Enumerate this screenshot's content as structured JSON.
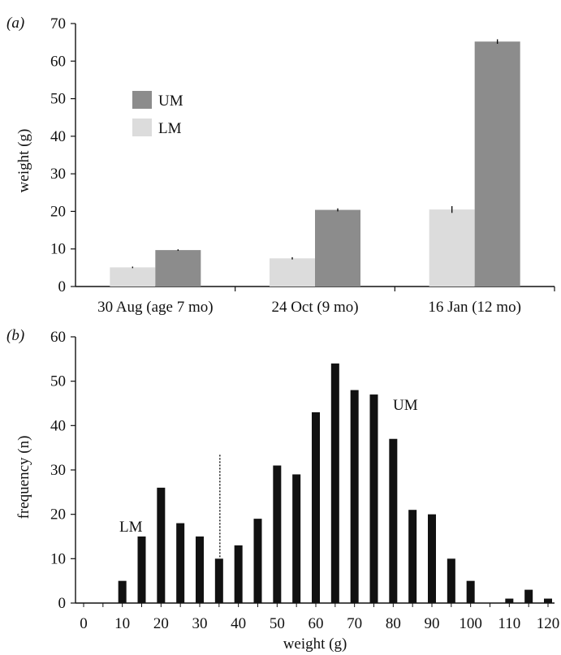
{
  "chart_data": [
    {
      "panel_label": "(a)",
      "type": "bar",
      "ylabel": "weight (g)",
      "ylim": [
        0,
        70
      ],
      "yticks": [
        0,
        10,
        20,
        30,
        40,
        50,
        60,
        70
      ],
      "categories": [
        "30 Aug (age 7 mo)",
        "24 Oct (9 mo)",
        "16 Jan (12 mo)"
      ],
      "series": [
        {
          "name": "LM",
          "color": "#dcdcdc",
          "values": [
            5.1,
            7.5,
            20.5
          ],
          "errors": [
            0.2,
            0.3,
            0.9
          ]
        },
        {
          "name": "UM",
          "color": "#8c8c8c",
          "values": [
            9.7,
            20.4,
            65.2
          ],
          "errors": [
            0.2,
            0.4,
            0.6
          ]
        }
      ],
      "legend": {
        "placement": "top-left",
        "entries": [
          "UM",
          "LM"
        ]
      },
      "error_bars": true,
      "grid": false
    },
    {
      "panel_label": "(b)",
      "type": "bar",
      "xlabel": "weight (g)",
      "ylabel": "frequency (n)",
      "xlim": [
        0,
        120
      ],
      "ylim": [
        0,
        60
      ],
      "xticks": [
        0,
        10,
        20,
        30,
        40,
        50,
        60,
        70,
        80,
        90,
        100,
        110,
        120
      ],
      "yticks": [
        0,
        10,
        20,
        30,
        40,
        50,
        60
      ],
      "x": [
        5,
        10,
        15,
        20,
        25,
        30,
        35,
        40,
        45,
        50,
        55,
        60,
        65,
        70,
        75,
        80,
        85,
        90,
        95,
        100,
        105,
        110,
        115,
        120
      ],
      "values": [
        0,
        5,
        15,
        26,
        18,
        15,
        10,
        13,
        19,
        31,
        29,
        43,
        54,
        48,
        47,
        37,
        21,
        20,
        10,
        5,
        0,
        1,
        3,
        1
      ],
      "bar_color": "#111111",
      "threshold_line": {
        "x": 35,
        "style": "dotted"
      },
      "annotations": [
        "LM",
        "UM"
      ],
      "grid": false
    }
  ]
}
